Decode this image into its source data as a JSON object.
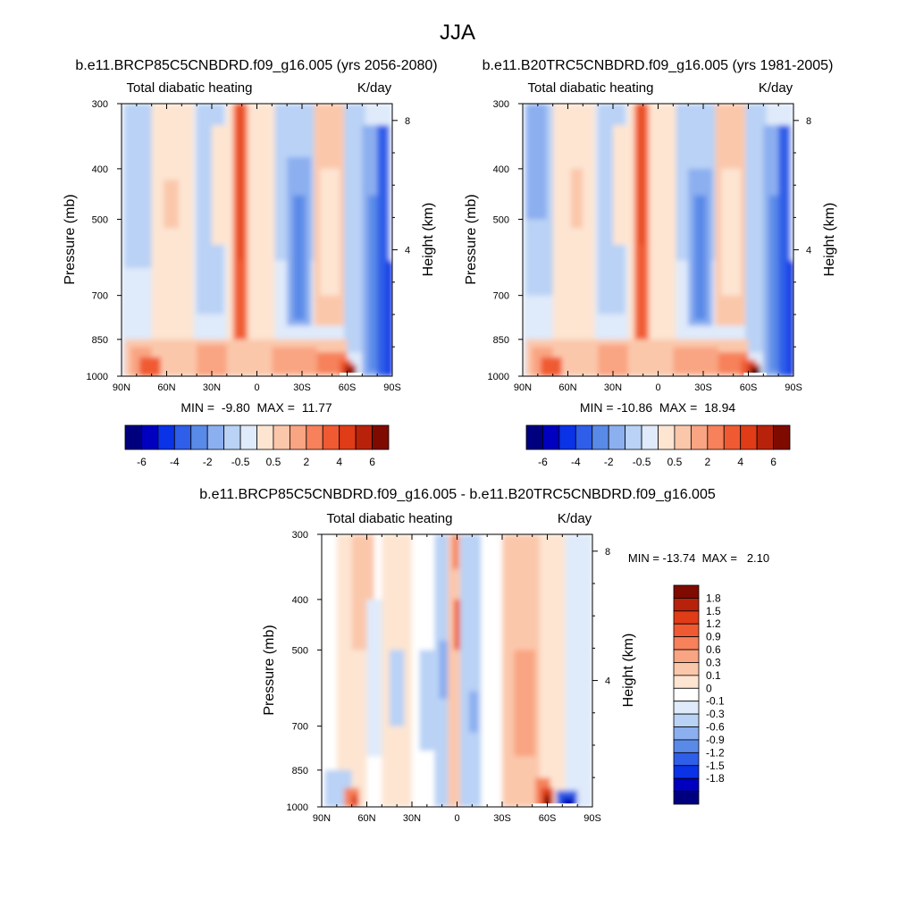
{
  "figure": {
    "title": "JJA"
  },
  "colors": {
    "scale11": [
      "#00007f",
      "#0000be",
      "#0a32e6",
      "#2f5ee8",
      "#5a8ae8",
      "#8caff0",
      "#b9d2f5",
      "#dfeafa",
      "#fde5d2",
      "#fbc7ab",
      "#f9a482",
      "#f6815a",
      "#f05a32",
      "#df3c17",
      "#b8220b",
      "#7f0a00"
    ],
    "scale21": [
      "#00007f",
      "#0000be",
      "#0a32e6",
      "#2f5ee8",
      "#5a8ae8",
      "#8caff0",
      "#b9d2f5",
      "#dfeafa",
      "#ffffff",
      "#fde5d2",
      "#fbc7ab",
      "#f9a482",
      "#f6815a",
      "#f05a32",
      "#df3c17",
      "#b8220b",
      "#7f0a00"
    ]
  },
  "chart_data": [
    {
      "type": "heatmap",
      "id": "future",
      "title": "b.e11.BRCP85C5CNBDRD.f09_g16.005 (yrs 2056-2080)",
      "left_string": "Total diabatic heating",
      "right_string": "K/day",
      "xlabel": "",
      "ylabel": "Pressure (mb)",
      "y2label": "Height (km)",
      "x_ticks": [
        "90N",
        "60N",
        "30N",
        "0",
        "30S",
        "60S",
        "90S"
      ],
      "x_tick_values": [
        90,
        60,
        30,
        0,
        -30,
        -60,
        -90
      ],
      "y_ticks": [
        "300",
        "400",
        "500",
        "700",
        "850",
        "1000"
      ],
      "y_tick_values": [
        300,
        400,
        500,
        700,
        850,
        1000
      ],
      "y2_ticks": [
        "8",
        "4"
      ],
      "y2_tick_values": [
        8,
        4
      ],
      "xlim": [
        90,
        -90
      ],
      "ylim": [
        1000,
        300
      ],
      "stats": "MIN =  -9.80  MAX =  11.77",
      "min": -9.8,
      "max": 11.77,
      "colorbar_labels": [
        "-6",
        "-4",
        "-2",
        "-0.5",
        "0.5",
        "2",
        "4",
        "6"
      ],
      "features": [
        {
          "lat": -60,
          "p": 980,
          "value": 11.77
        },
        {
          "lat": 10,
          "p": 500,
          "value": 6
        }
      ]
    },
    {
      "type": "heatmap",
      "id": "historical",
      "title": "b.e11.B20TRC5CNBDRD.f09_g16.005 (yrs 1981-2005)",
      "left_string": "Total diabatic heating",
      "right_string": "K/day",
      "xlabel": "",
      "ylabel": "Pressure (mb)",
      "y2label": "Height (km)",
      "x_ticks": [
        "90N",
        "60N",
        "30N",
        "0",
        "30S",
        "60S",
        "90S"
      ],
      "x_tick_values": [
        90,
        60,
        30,
        0,
        -30,
        -60,
        -90
      ],
      "y_ticks": [
        "300",
        "400",
        "500",
        "700",
        "850",
        "1000"
      ],
      "y_tick_values": [
        300,
        400,
        500,
        700,
        850,
        1000
      ],
      "y2_ticks": [
        "8",
        "4"
      ],
      "y2_tick_values": [
        8,
        4
      ],
      "xlim": [
        90,
        -90
      ],
      "ylim": [
        1000,
        300
      ],
      "stats": "MIN = -10.86  MAX =  18.94",
      "min": -10.86,
      "max": 18.94,
      "colorbar_labels": [
        "-6",
        "-4",
        "-2",
        "-0.5",
        "0.5",
        "2",
        "4",
        "6"
      ],
      "features": [
        {
          "lat": -65,
          "p": 980,
          "value": 18.94
        },
        {
          "lat": 10,
          "p": 500,
          "value": 6
        }
      ]
    },
    {
      "type": "heatmap",
      "id": "difference",
      "title": "b.e11.BRCP85C5CNBDRD.f09_g16.005 - b.e11.B20TRC5CNBDRD.f09_g16.005",
      "left_string": "Total diabatic heating",
      "right_string": "K/day",
      "xlabel": "",
      "ylabel": "Pressure (mb)",
      "y2label": "Height (km)",
      "x_ticks": [
        "90N",
        "60N",
        "30N",
        "0",
        "30S",
        "60S",
        "90S"
      ],
      "x_tick_values": [
        90,
        60,
        30,
        0,
        -30,
        -60,
        -90
      ],
      "y_ticks": [
        "300",
        "400",
        "500",
        "700",
        "850",
        "1000"
      ],
      "y_tick_values": [
        300,
        400,
        500,
        700,
        850,
        1000
      ],
      "y2_ticks": [
        "8",
        "4"
      ],
      "y2_tick_values": [
        8,
        4
      ],
      "xlim": [
        90,
        -90
      ],
      "ylim": [
        1000,
        300
      ],
      "stats": "MIN = -13.74  MAX =   2.10",
      "min": -13.74,
      "max": 2.1,
      "colorbar_labels": [
        "1.8",
        "1.5",
        "1.2",
        "0.9",
        "0.6",
        "0.3",
        "0.1",
        "0",
        "-0.1",
        "-0.3",
        "-0.6",
        "-0.9",
        "-1.2",
        "-1.5",
        "-1.8"
      ],
      "features": [
        {
          "lat": -65,
          "p": 980,
          "value": 2.1
        },
        {
          "lat": -75,
          "p": 990,
          "value": -13.74
        }
      ]
    }
  ]
}
